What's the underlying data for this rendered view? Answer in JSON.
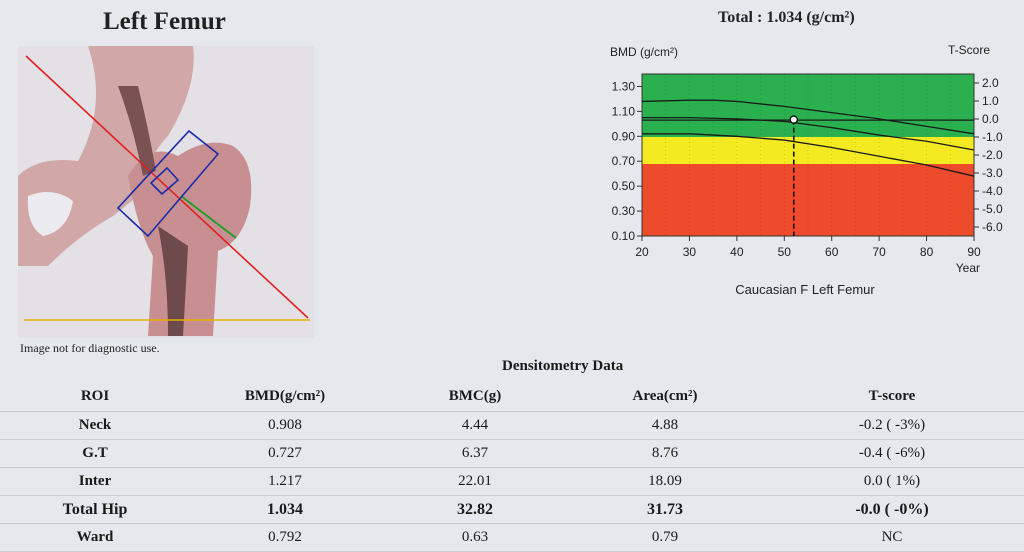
{
  "header": {
    "title": "Left Femur",
    "disclaimer": "Image not for diagnostic use.",
    "total_label": "Total :",
    "total_value": "1.034 (g/cm²)"
  },
  "chart_data": {
    "type": "line",
    "ylabel": "BMD (g/cm²)",
    "y2label": "T-Score",
    "xlabel": "Year",
    "caption": "Caucasian F Left Femur",
    "xlim": [
      20,
      90
    ],
    "ylim": [
      0.1,
      1.4
    ],
    "y2lim": [
      -6.5,
      2.5
    ],
    "x_ticks": [
      "20",
      "30",
      "40",
      "50",
      "60",
      "70",
      "80",
      "90"
    ],
    "y_ticks": [
      "0.10",
      "0.30",
      "0.50",
      "0.70",
      "0.90",
      "1.10",
      "1.30"
    ],
    "y2_ticks": [
      "2.0",
      "1.0",
      "0.0",
      "-1.0",
      "-2.0",
      "-3.0",
      "-4.0",
      "-5.0",
      "-6.0"
    ],
    "bands": [
      {
        "from_t": -6.5,
        "to_t": -2.5,
        "color": "#ee4a2c"
      },
      {
        "from_t": -2.5,
        "to_t": -1.0,
        "color": "#f3ea22"
      },
      {
        "from_t": -1.0,
        "to_t": 2.5,
        "color": "#2ab04e"
      }
    ],
    "series": [
      {
        "x": [
          20,
          30,
          35,
          40,
          50,
          60,
          70,
          80,
          90
        ],
        "y": [
          1.18,
          1.19,
          1.19,
          1.18,
          1.14,
          1.09,
          1.04,
          0.98,
          0.92
        ]
      },
      {
        "x": [
          20,
          30,
          40,
          50,
          60,
          70,
          80,
          90
        ],
        "y": [
          1.05,
          1.05,
          1.04,
          1.02,
          0.97,
          0.91,
          0.86,
          0.79
        ]
      },
      {
        "x": [
          20,
          30,
          40,
          50,
          60,
          70,
          80,
          90
        ],
        "y": [
          0.92,
          0.92,
          0.9,
          0.87,
          0.81,
          0.74,
          0.67,
          0.58
        ]
      },
      {
        "x": [
          20,
          40,
          60,
          90
        ],
        "y": [
          1.03,
          1.03,
          1.03,
          1.03
        ]
      }
    ],
    "patient": {
      "age": 52,
      "bmd": 1.034
    }
  },
  "table": {
    "title": "Densitometry Data",
    "columns": [
      "ROI",
      "BMD(g/cm²)",
      "BMC(g)",
      "Area(cm²)",
      "T-score"
    ],
    "rows": [
      [
        "Neck",
        "0.908",
        "4.44",
        "4.88",
        "-0.2 ( -3%)"
      ],
      [
        "G.T",
        "0.727",
        "6.37",
        "8.76",
        "-0.4 ( -6%)"
      ],
      [
        "Inter",
        "1.217",
        "22.01",
        "18.09",
        "0.0 ( 1%)"
      ],
      [
        "Total Hip",
        "1.034",
        "32.82",
        "31.73",
        "-0.0 ( -0%)"
      ],
      [
        "Ward",
        "0.792",
        "0.63",
        "0.79",
        "NC"
      ]
    ]
  }
}
